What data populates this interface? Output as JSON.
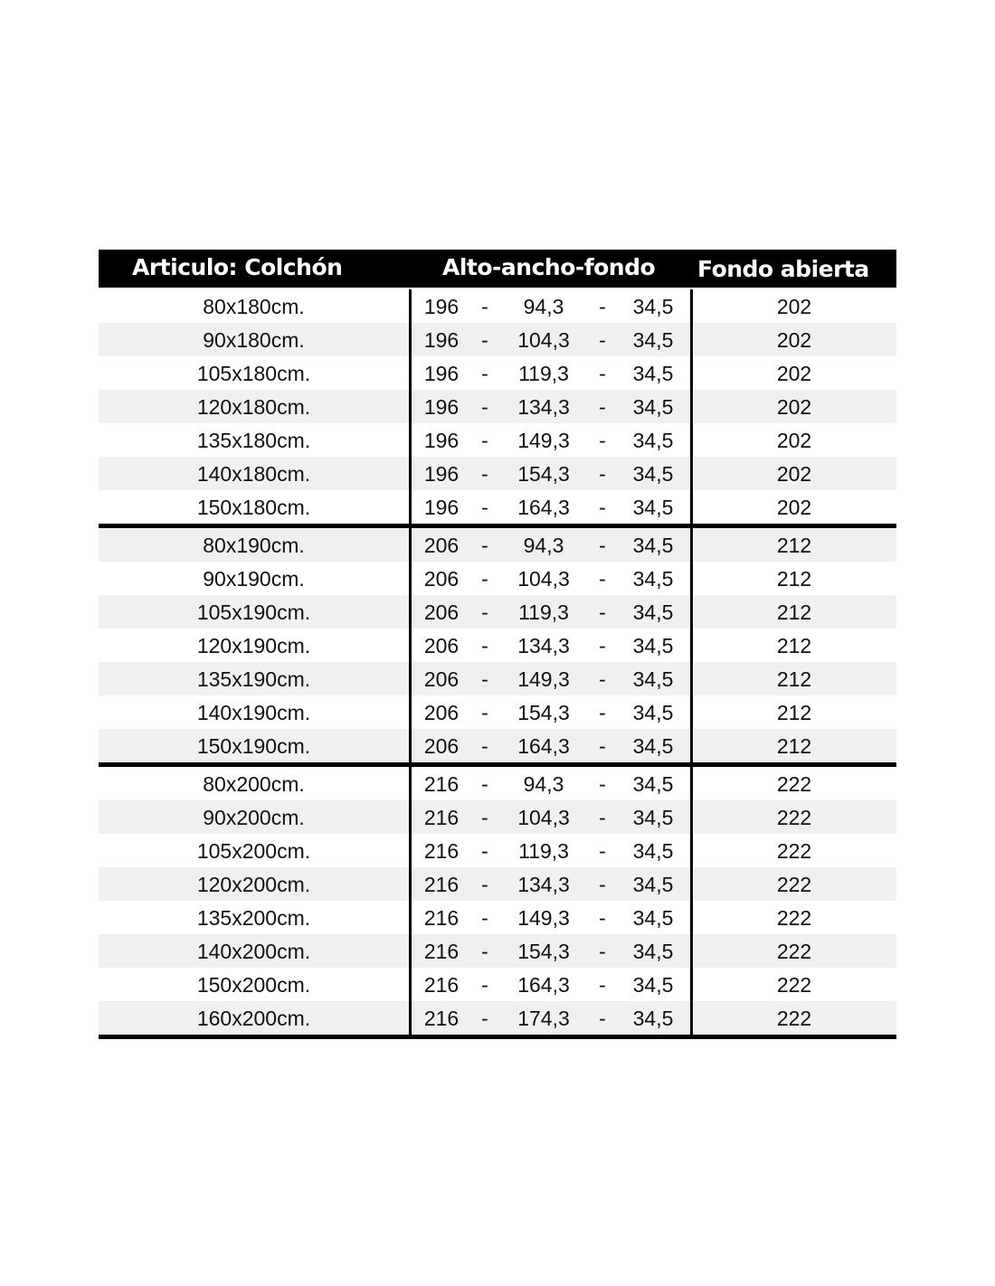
{
  "header": {
    "col1": "Articulo: Colchón",
    "col2": "Alto-ancho-fondo",
    "col3": "Fondo abierta"
  },
  "separator": "-",
  "groups": [
    {
      "rows": [
        {
          "article": "80x180cm.",
          "alto": "196",
          "ancho": "94,3",
          "fondo": "34,5",
          "fondo_abierta": "202"
        },
        {
          "article": "90x180cm.",
          "alto": "196",
          "ancho": "104,3",
          "fondo": "34,5",
          "fondo_abierta": "202"
        },
        {
          "article": "105x180cm.",
          "alto": "196",
          "ancho": "119,3",
          "fondo": "34,5",
          "fondo_abierta": "202"
        },
        {
          "article": "120x180cm.",
          "alto": "196",
          "ancho": "134,3",
          "fondo": "34,5",
          "fondo_abierta": "202"
        },
        {
          "article": "135x180cm.",
          "alto": "196",
          "ancho": "149,3",
          "fondo": "34,5",
          "fondo_abierta": "202"
        },
        {
          "article": "140x180cm.",
          "alto": "196",
          "ancho": "154,3",
          "fondo": "34,5",
          "fondo_abierta": "202"
        },
        {
          "article": "150x180cm.",
          "alto": "196",
          "ancho": "164,3",
          "fondo": "34,5",
          "fondo_abierta": "202"
        }
      ]
    },
    {
      "rows": [
        {
          "article": "80x190cm.",
          "alto": "206",
          "ancho": "94,3",
          "fondo": "34,5",
          "fondo_abierta": "212"
        },
        {
          "article": "90x190cm.",
          "alto": "206",
          "ancho": "104,3",
          "fondo": "34,5",
          "fondo_abierta": "212"
        },
        {
          "article": "105x190cm.",
          "alto": "206",
          "ancho": "119,3",
          "fondo": "34,5",
          "fondo_abierta": "212"
        },
        {
          "article": "120x190cm.",
          "alto": "206",
          "ancho": "134,3",
          "fondo": "34,5",
          "fondo_abierta": "212"
        },
        {
          "article": "135x190cm.",
          "alto": "206",
          "ancho": "149,3",
          "fondo": "34,5",
          "fondo_abierta": "212"
        },
        {
          "article": "140x190cm.",
          "alto": "206",
          "ancho": "154,3",
          "fondo": "34,5",
          "fondo_abierta": "212"
        },
        {
          "article": "150x190cm.",
          "alto": "206",
          "ancho": "164,3",
          "fondo": "34,5",
          "fondo_abierta": "212"
        }
      ]
    },
    {
      "rows": [
        {
          "article": "80x200cm.",
          "alto": "216",
          "ancho": "94,3",
          "fondo": "34,5",
          "fondo_abierta": "222"
        },
        {
          "article": "90x200cm.",
          "alto": "216",
          "ancho": "104,3",
          "fondo": "34,5",
          "fondo_abierta": "222"
        },
        {
          "article": "105x200cm.",
          "alto": "216",
          "ancho": "119,3",
          "fondo": "34,5",
          "fondo_abierta": "222"
        },
        {
          "article": "120x200cm.",
          "alto": "216",
          "ancho": "134,3",
          "fondo": "34,5",
          "fondo_abierta": "222"
        },
        {
          "article": "135x200cm.",
          "alto": "216",
          "ancho": "149,3",
          "fondo": "34,5",
          "fondo_abierta": "222"
        },
        {
          "article": "140x200cm.",
          "alto": "216",
          "ancho": "154,3",
          "fondo": "34,5",
          "fondo_abierta": "222"
        },
        {
          "article": "150x200cm.",
          "alto": "216",
          "ancho": "164,3",
          "fondo": "34,5",
          "fondo_abierta": "222"
        },
        {
          "article": "160x200cm.",
          "alto": "216",
          "ancho": "174,3",
          "fondo": "34,5",
          "fondo_abierta": "222"
        }
      ]
    }
  ]
}
